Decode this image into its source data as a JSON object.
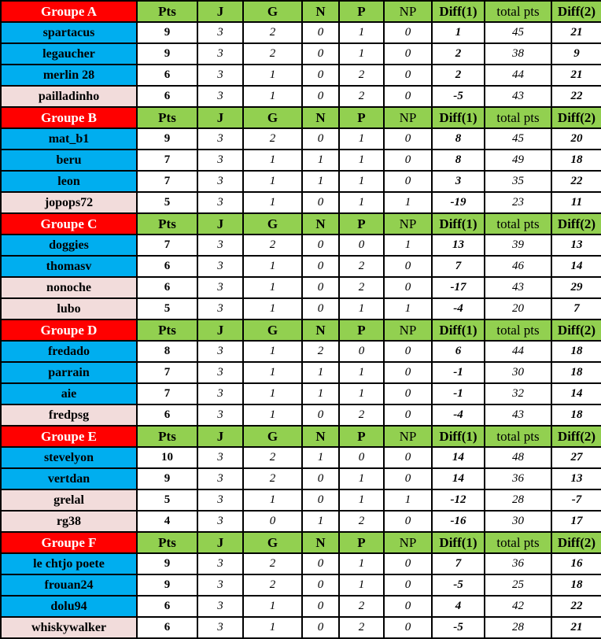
{
  "colors": {
    "group_header_bg": "#ff0000",
    "group_header_text": "#ffffff",
    "column_header_bg": "#92d050",
    "row_blue_bg": "#00aeef",
    "row_pink_bg": "#f2dcdb",
    "grid_border": "#000000"
  },
  "table": {
    "columns": [
      "Pts",
      "J",
      "G",
      "N",
      "P",
      "NP",
      "Diff(1)",
      "total pts",
      "Diff(2)"
    ],
    "groups": [
      {
        "label": "Groupe A",
        "rows": [
          {
            "name": "spartacus",
            "tone": "blue",
            "values": [
              "9",
              "3",
              "2",
              "0",
              "1",
              "0",
              "1",
              "45",
              "21"
            ]
          },
          {
            "name": "legaucher",
            "tone": "blue",
            "values": [
              "9",
              "3",
              "2",
              "0",
              "1",
              "0",
              "2",
              "38",
              "9"
            ]
          },
          {
            "name": "merlin 28",
            "tone": "blue",
            "values": [
              "6",
              "3",
              "1",
              "0",
              "2",
              "0",
              "2",
              "44",
              "21"
            ]
          },
          {
            "name": "pailladinho",
            "tone": "pink",
            "values": [
              "6",
              "3",
              "1",
              "0",
              "2",
              "0",
              "-5",
              "43",
              "22"
            ]
          }
        ]
      },
      {
        "label": "Groupe B",
        "rows": [
          {
            "name": "mat_b1",
            "tone": "blue",
            "values": [
              "9",
              "3",
              "2",
              "0",
              "1",
              "0",
              "8",
              "45",
              "20"
            ]
          },
          {
            "name": "beru",
            "tone": "blue",
            "values": [
              "7",
              "3",
              "1",
              "1",
              "1",
              "0",
              "8",
              "49",
              "18"
            ]
          },
          {
            "name": "leon",
            "tone": "blue",
            "values": [
              "7",
              "3",
              "1",
              "1",
              "1",
              "0",
              "3",
              "35",
              "22"
            ]
          },
          {
            "name": "jopops72",
            "tone": "pink",
            "values": [
              "5",
              "3",
              "1",
              "0",
              "1",
              "1",
              "-19",
              "23",
              "11"
            ]
          }
        ]
      },
      {
        "label": "Groupe C",
        "rows": [
          {
            "name": "doggies",
            "tone": "blue",
            "values": [
              "7",
              "3",
              "2",
              "0",
              "0",
              "1",
              "13",
              "39",
              "13"
            ]
          },
          {
            "name": "thomasv",
            "tone": "blue",
            "values": [
              "6",
              "3",
              "1",
              "0",
              "2",
              "0",
              "7",
              "46",
              "14"
            ]
          },
          {
            "name": "nonoche",
            "tone": "pink",
            "values": [
              "6",
              "3",
              "1",
              "0",
              "2",
              "0",
              "-17",
              "43",
              "29"
            ]
          },
          {
            "name": "lubo",
            "tone": "pink",
            "values": [
              "5",
              "3",
              "1",
              "0",
              "1",
              "1",
              "-4",
              "20",
              "7"
            ]
          }
        ]
      },
      {
        "label": "Groupe D",
        "rows": [
          {
            "name": "fredado",
            "tone": "blue",
            "values": [
              "8",
              "3",
              "1",
              "2",
              "0",
              "0",
              "6",
              "44",
              "18"
            ]
          },
          {
            "name": "parrain",
            "tone": "blue",
            "values": [
              "7",
              "3",
              "1",
              "1",
              "1",
              "0",
              "-1",
              "30",
              "18"
            ]
          },
          {
            "name": "aie",
            "tone": "blue",
            "values": [
              "7",
              "3",
              "1",
              "1",
              "1",
              "0",
              "-1",
              "32",
              "14"
            ]
          },
          {
            "name": "fredpsg",
            "tone": "pink",
            "values": [
              "6",
              "3",
              "1",
              "0",
              "2",
              "0",
              "-4",
              "43",
              "18"
            ]
          }
        ]
      },
      {
        "label": "Groupe E",
        "rows": [
          {
            "name": "stevelyon",
            "tone": "blue",
            "values": [
              "10",
              "3",
              "2",
              "1",
              "0",
              "0",
              "14",
              "48",
              "27"
            ]
          },
          {
            "name": "vertdan",
            "tone": "blue",
            "values": [
              "9",
              "3",
              "2",
              "0",
              "1",
              "0",
              "14",
              "36",
              "13"
            ]
          },
          {
            "name": "grelal",
            "tone": "pink",
            "values": [
              "5",
              "3",
              "1",
              "0",
              "1",
              "1",
              "-12",
              "28",
              "-7"
            ]
          },
          {
            "name": "rg38",
            "tone": "pink",
            "values": [
              "4",
              "3",
              "0",
              "1",
              "2",
              "0",
              "-16",
              "30",
              "17"
            ]
          }
        ]
      },
      {
        "label": "Groupe F",
        "rows": [
          {
            "name": "le chtjo poete",
            "tone": "blue",
            "values": [
              "9",
              "3",
              "2",
              "0",
              "1",
              "0",
              "7",
              "36",
              "16"
            ]
          },
          {
            "name": "frouan24",
            "tone": "blue",
            "values": [
              "9",
              "3",
              "2",
              "0",
              "1",
              "0",
              "-5",
              "25",
              "18"
            ]
          },
          {
            "name": "dolu94",
            "tone": "blue",
            "values": [
              "6",
              "3",
              "1",
              "0",
              "2",
              "0",
              "4",
              "42",
              "22"
            ]
          },
          {
            "name": "whiskywalker",
            "tone": "pink",
            "values": [
              "6",
              "3",
              "1",
              "0",
              "2",
              "0",
              "-5",
              "28",
              "21"
            ]
          }
        ]
      }
    ]
  }
}
